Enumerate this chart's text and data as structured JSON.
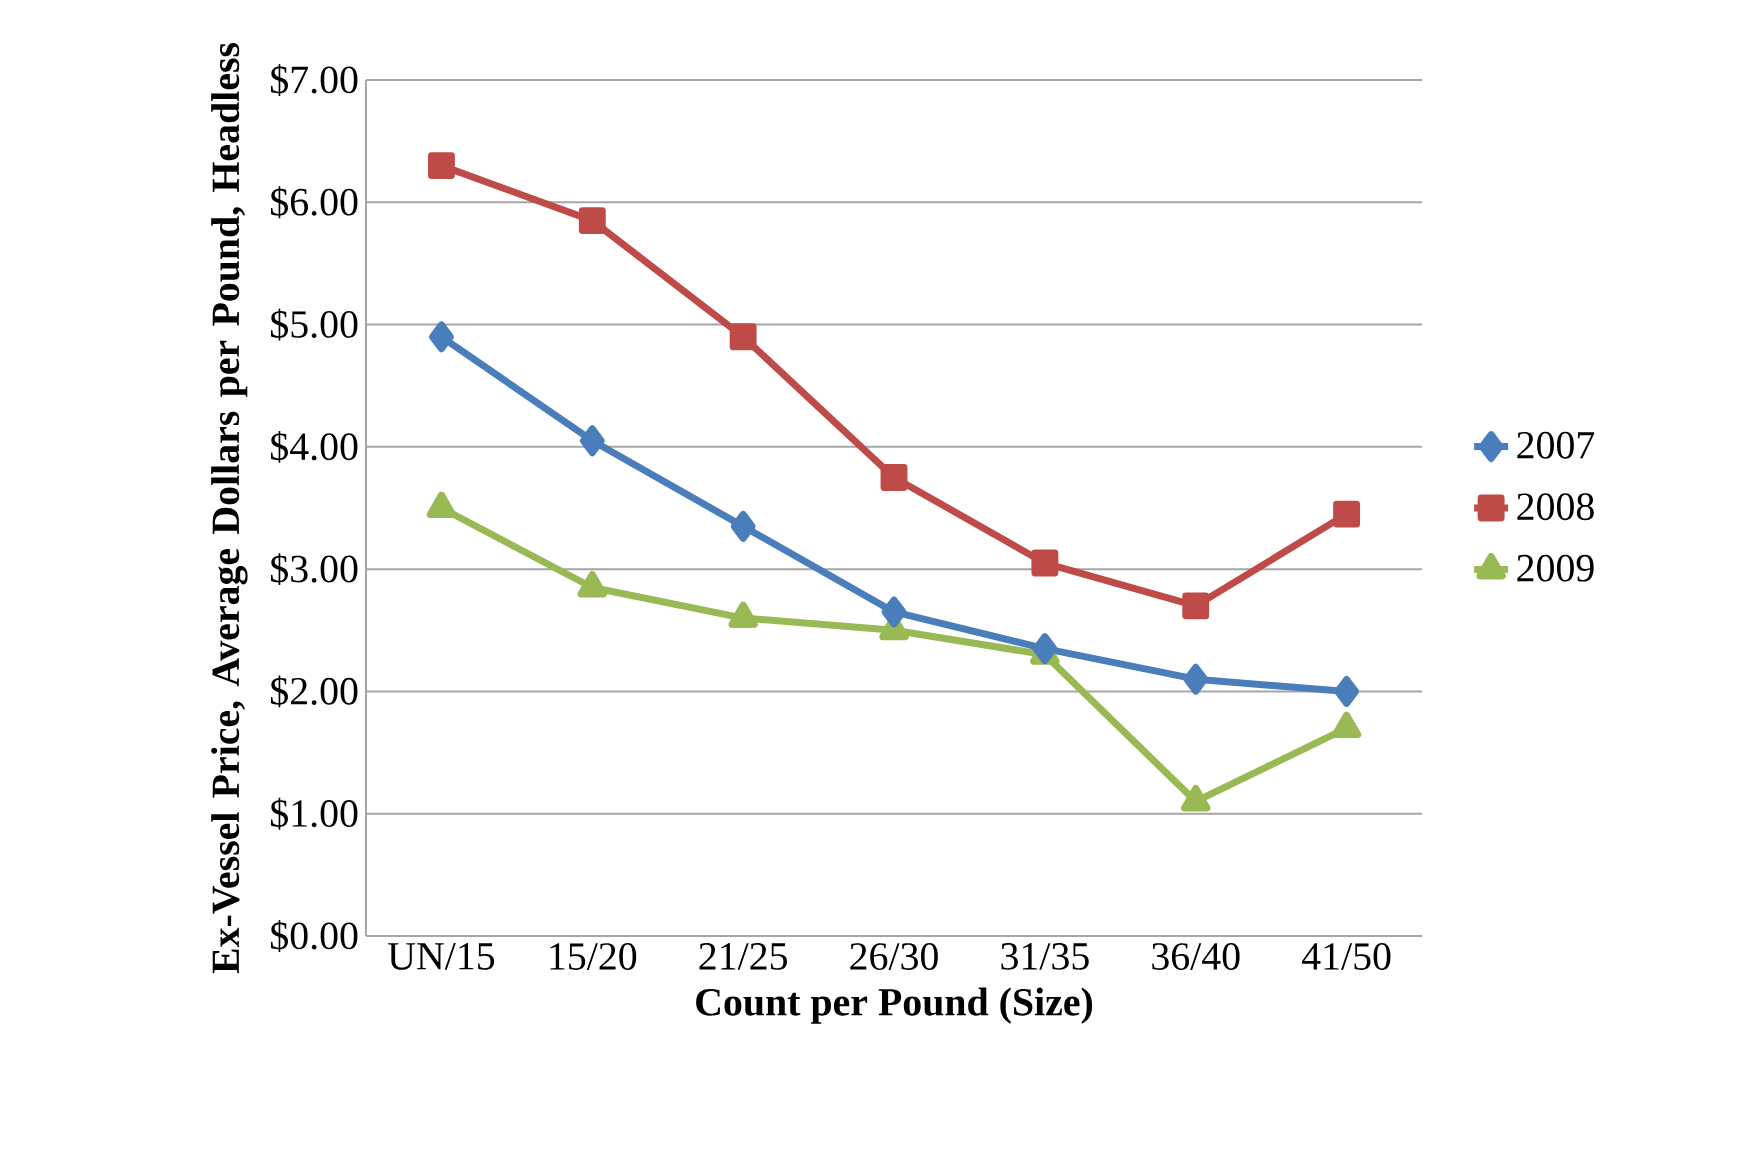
{
  "chart_data": {
    "type": "line",
    "xlabel": "Count per Pound (Size)",
    "ylabel": "Ex-Vessel Price, Average Dollars per Pound, Headless",
    "categories": [
      "UN/15",
      "15/20",
      "21/25",
      "26/30",
      "31/35",
      "36/40",
      "41/50"
    ],
    "series": [
      {
        "name": "2007",
        "color": "#4a7ebb",
        "marker": "diamond",
        "values": [
          4.9,
          4.05,
          3.35,
          2.65,
          2.35,
          2.1,
          2.0
        ]
      },
      {
        "name": "2008",
        "color": "#be4b48",
        "marker": "square",
        "values": [
          6.3,
          5.85,
          4.9,
          3.75,
          3.05,
          2.7,
          3.45
        ]
      },
      {
        "name": "2009",
        "color": "#98b954",
        "marker": "triangle",
        "values": [
          3.5,
          2.85,
          2.6,
          2.5,
          2.3,
          1.1,
          1.7
        ]
      }
    ],
    "ylim": [
      0,
      7
    ],
    "yticks": [
      {
        "value": 0,
        "label": "$0.00"
      },
      {
        "value": 1,
        "label": "$1.00"
      },
      {
        "value": 2,
        "label": "$2.00"
      },
      {
        "value": 3,
        "label": "$3.00"
      },
      {
        "value": 4,
        "label": "$4.00"
      },
      {
        "value": 5,
        "label": "$5.00"
      },
      {
        "value": 6,
        "label": "$6.00"
      },
      {
        "value": 7,
        "label": "$7.00"
      }
    ],
    "grid": "y",
    "legend": "right",
    "line_style": "solid"
  }
}
